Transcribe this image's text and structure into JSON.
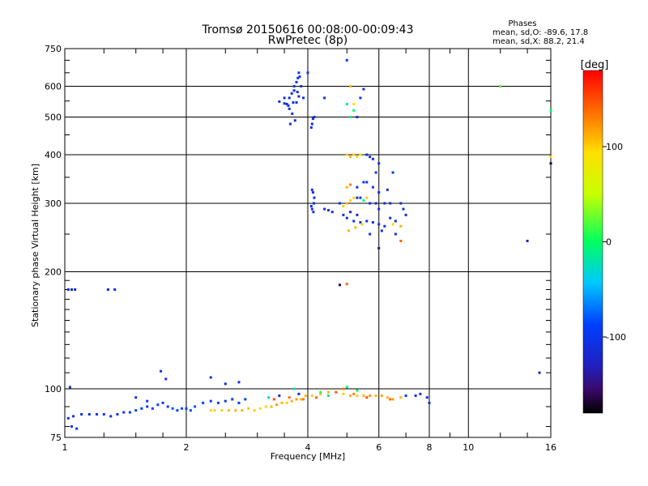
{
  "chart_data": {
    "type": "scatter",
    "title": "Tromsø 20150616 00:08:00-00:09:43",
    "subtitle": "RwPretec (8p)",
    "xlabel": "Frequency [MHz]",
    "ylabel": "Stationary phase Virtual Height [km]",
    "x_scale": "log",
    "y_scale": "log",
    "xlim": [
      1,
      16
    ],
    "ylim": [
      75,
      750
    ],
    "x_ticks": [
      1,
      2,
      4,
      6,
      8,
      10,
      16
    ],
    "x_tick_labels": [
      "1",
      "2",
      "4",
      "6",
      "8",
      "10",
      "16"
    ],
    "y_ticks": [
      75,
      100,
      200,
      300,
      400,
      500,
      600,
      750
    ],
    "y_tick_labels": [
      "75",
      "100",
      "200",
      "300",
      "400",
      "500",
      "600",
      "750"
    ],
    "grid": true,
    "stats": {
      "header": "Phases",
      "line_o": "mean, sd,O: -89.6, 17.8",
      "line_x": "mean, sd,X:  88.2, 21.4"
    },
    "colorbar": {
      "label": "[deg]",
      "min": -180,
      "max": 180,
      "ticks": [
        100,
        0,
        -100
      ],
      "tick_labels": [
        "100",
        "0",
        "-100"
      ]
    },
    "series": [
      {
        "points": [
          [
            1.02,
            180,
            -115
          ],
          [
            1.04,
            180,
            -115
          ],
          [
            1.06,
            180,
            -115
          ],
          [
            1.28,
            180,
            -110
          ],
          [
            1.33,
            180,
            -110
          ],
          [
            1.02,
            84,
            -100
          ],
          [
            1.05,
            85,
            -100
          ],
          [
            1.1,
            86,
            -100
          ],
          [
            1.15,
            86,
            -105
          ],
          [
            1.2,
            86,
            -105
          ],
          [
            1.25,
            86,
            -100
          ],
          [
            1.3,
            85,
            -105
          ],
          [
            1.35,
            86,
            -105
          ],
          [
            1.4,
            87,
            -100
          ],
          [
            1.45,
            87,
            -95
          ],
          [
            1.5,
            88,
            -90
          ],
          [
            1.55,
            89,
            -95
          ],
          [
            1.6,
            90,
            -95
          ],
          [
            1.65,
            89,
            -90
          ],
          [
            1.7,
            91,
            -90
          ],
          [
            1.75,
            92,
            -95
          ],
          [
            1.8,
            90,
            -90
          ],
          [
            1.85,
            89,
            -80
          ],
          [
            1.9,
            88,
            -90
          ],
          [
            1.95,
            89,
            -85
          ],
          [
            2.0,
            89,
            -90
          ],
          [
            2.05,
            88,
            -85
          ],
          [
            2.1,
            90,
            -80
          ],
          [
            2.2,
            92,
            -90
          ],
          [
            2.3,
            93,
            -90
          ],
          [
            2.4,
            92,
            -90
          ],
          [
            2.5,
            93,
            -100
          ],
          [
            2.6,
            94,
            -95
          ],
          [
            2.7,
            92,
            -95
          ],
          [
            2.8,
            94,
            -90
          ],
          [
            1.04,
            80,
            -95
          ],
          [
            1.07,
            79,
            -100
          ],
          [
            1.03,
            101,
            -105
          ],
          [
            1.73,
            111,
            -100
          ],
          [
            1.78,
            106,
            -110
          ],
          [
            2.3,
            107,
            -110
          ],
          [
            2.5,
            103,
            -115
          ],
          [
            2.7,
            104,
            -110
          ],
          [
            1.5,
            95,
            -105
          ],
          [
            1.6,
            93,
            -100
          ],
          [
            2.3,
            88,
            100
          ],
          [
            2.35,
            88,
            100
          ],
          [
            2.45,
            88,
            100
          ],
          [
            2.55,
            88,
            110
          ],
          [
            2.65,
            88,
            110
          ],
          [
            2.75,
            88,
            110
          ],
          [
            2.85,
            89,
            105
          ],
          [
            2.95,
            88,
            100
          ],
          [
            3.05,
            89,
            95
          ],
          [
            3.15,
            90,
            100
          ],
          [
            3.25,
            90,
            110
          ],
          [
            3.35,
            91,
            120
          ],
          [
            3.45,
            92,
            110
          ],
          [
            3.55,
            92,
            100
          ],
          [
            3.65,
            93,
            110
          ],
          [
            3.75,
            94,
            120
          ],
          [
            3.85,
            94,
            110
          ],
          [
            3.95,
            96,
            110
          ],
          [
            4.1,
            96,
            100
          ],
          [
            4.3,
            97,
            110
          ],
          [
            4.5,
            98,
            110
          ],
          [
            4.7,
            98,
            120
          ],
          [
            4.9,
            97,
            100
          ],
          [
            5.1,
            96,
            110
          ],
          [
            5.3,
            96,
            100
          ],
          [
            5.5,
            96,
            110
          ],
          [
            5.7,
            96,
            120
          ],
          [
            5.9,
            96,
            110
          ],
          [
            6.1,
            96,
            115
          ],
          [
            6.3,
            95,
            110
          ],
          [
            6.5,
            94,
            120
          ],
          [
            6.8,
            95,
            110
          ],
          [
            3.3,
            94,
            150
          ],
          [
            3.6,
            95,
            140
          ],
          [
            3.9,
            94,
            130
          ],
          [
            4.2,
            95,
            140
          ],
          [
            4.7,
            98,
            140
          ],
          [
            4.9,
            100,
            130
          ],
          [
            5.2,
            97,
            130
          ],
          [
            5.6,
            95,
            150
          ],
          [
            6.4,
            94,
            140
          ],
          [
            4.5,
            96,
            -10
          ],
          [
            5.0,
            101,
            -20
          ],
          [
            5.3,
            99,
            0
          ],
          [
            4.3,
            98,
            10
          ],
          [
            3.7,
            100,
            -20
          ],
          [
            3.2,
            95,
            -40
          ],
          [
            7.0,
            96,
            -100
          ],
          [
            7.4,
            96,
            -110
          ],
          [
            7.9,
            95,
            -110
          ],
          [
            7.6,
            97,
            -110
          ],
          [
            8.0,
            92,
            -110
          ],
          [
            3.4,
            96,
            -120
          ],
          [
            3.8,
            97,
            -120
          ],
          [
            3.5,
            542,
            -110
          ],
          [
            3.55,
            540,
            -110
          ],
          [
            3.6,
            560,
            -110
          ],
          [
            3.65,
            575,
            -110
          ],
          [
            3.7,
            600,
            -100
          ],
          [
            3.75,
            615,
            -110
          ],
          [
            3.78,
            630,
            -105
          ],
          [
            3.8,
            650,
            -105
          ],
          [
            3.82,
            635,
            -100
          ],
          [
            3.7,
            585,
            -110
          ],
          [
            3.6,
            525,
            -110
          ],
          [
            3.66,
            510,
            -110
          ],
          [
            3.75,
            545,
            -110
          ],
          [
            3.8,
            565,
            -110
          ],
          [
            3.5,
            560,
            -110
          ],
          [
            3.4,
            548,
            -105
          ],
          [
            3.85,
            600,
            -110
          ],
          [
            3.72,
            490,
            -110
          ],
          [
            3.9,
            560,
            -110
          ],
          [
            4.0,
            650,
            -100
          ],
          [
            3.62,
            480,
            -110
          ],
          [
            3.58,
            535,
            -110
          ],
          [
            3.68,
            545,
            -110
          ],
          [
            3.77,
            580,
            -110
          ],
          [
            4.4,
            560,
            -110
          ],
          [
            4.12,
            495,
            -110
          ],
          [
            4.15,
            500,
            -110
          ],
          [
            4.1,
            480,
            -110
          ],
          [
            4.08,
            470,
            -110
          ],
          [
            4.1,
            325,
            -110
          ],
          [
            4.12,
            320,
            -110
          ],
          [
            4.15,
            310,
            -110
          ],
          [
            4.08,
            295,
            -110
          ],
          [
            4.14,
            300,
            -110
          ],
          [
            4.1,
            290,
            -110
          ],
          [
            4.13,
            285,
            -110
          ],
          [
            5.0,
            400,
            100
          ],
          [
            5.1,
            395,
            110
          ],
          [
            5.2,
            400,
            100
          ],
          [
            5.3,
            395,
            95
          ],
          [
            5.4,
            400,
            90
          ],
          [
            5.6,
            400,
            -110
          ],
          [
            5.7,
            395,
            -110
          ],
          [
            5.8,
            390,
            -110
          ],
          [
            5.0,
            700,
            -100
          ],
          [
            5.1,
            600,
            110
          ],
          [
            5.2,
            540,
            90
          ],
          [
            5.3,
            500,
            -110
          ],
          [
            5.5,
            590,
            -110
          ],
          [
            5.4,
            560,
            -100
          ],
          [
            5.0,
            540,
            -20
          ],
          [
            5.2,
            520,
            -10
          ],
          [
            5.1,
            500,
            -10
          ],
          [
            4.8,
            300,
            -100
          ],
          [
            4.9,
            295,
            100
          ],
          [
            5.0,
            300,
            110
          ],
          [
            5.1,
            305,
            100
          ],
          [
            5.2,
            310,
            100
          ],
          [
            5.3,
            310,
            -110
          ],
          [
            5.4,
            310,
            -100
          ],
          [
            5.5,
            305,
            -10
          ],
          [
            5.6,
            310,
            100
          ],
          [
            5.7,
            300,
            -110
          ],
          [
            5.9,
            300,
            -110
          ],
          [
            6.0,
            290,
            -110
          ],
          [
            6.2,
            300,
            -110
          ],
          [
            6.4,
            300,
            -110
          ],
          [
            5.0,
            330,
            110
          ],
          [
            5.1,
            335,
            130
          ],
          [
            5.3,
            330,
            -100
          ],
          [
            5.5,
            340,
            -110
          ],
          [
            5.8,
            330,
            -110
          ],
          [
            6.0,
            320,
            -110
          ],
          [
            6.3,
            325,
            -110
          ],
          [
            4.9,
            280,
            -100
          ],
          [
            5.0,
            275,
            -110
          ],
          [
            5.2,
            270,
            -110
          ],
          [
            5.4,
            268,
            -110
          ],
          [
            5.6,
            270,
            -110
          ],
          [
            5.8,
            268,
            -110
          ],
          [
            6.0,
            265,
            -110
          ],
          [
            6.2,
            262,
            -110
          ],
          [
            6.5,
            265,
            100
          ],
          [
            6.8,
            262,
            110
          ],
          [
            6.6,
            270,
            -110
          ],
          [
            6.4,
            275,
            -110
          ],
          [
            4.6,
            285,
            -110
          ],
          [
            4.5,
            288,
            -100
          ],
          [
            4.4,
            290,
            -110
          ],
          [
            5.3,
            280,
            -120
          ],
          [
            5.1,
            285,
            -120
          ],
          [
            5.6,
            340,
            -100
          ],
          [
            5.9,
            360,
            -100
          ],
          [
            6.0,
            380,
            -110
          ],
          [
            6.5,
            360,
            -100
          ],
          [
            6.8,
            300,
            -110
          ],
          [
            6.9,
            290,
            -110
          ],
          [
            7.0,
            280,
            -110
          ],
          [
            5.05,
            255,
            110
          ],
          [
            5.25,
            260,
            110
          ],
          [
            5.45,
            265,
            100
          ],
          [
            5.7,
            250,
            -110
          ],
          [
            6.1,
            255,
            -110
          ],
          [
            6.6,
            250,
            -110
          ],
          [
            6.0,
            230,
            -140
          ],
          [
            6.8,
            240,
            140
          ],
          [
            4.8,
            185,
            -160
          ],
          [
            5.0,
            186,
            140
          ],
          [
            12.0,
            600,
            20
          ],
          [
            14.0,
            240,
            -130
          ],
          [
            15.0,
            110,
            -120
          ],
          [
            16.0,
            520,
            -10
          ],
          [
            16.0,
            380,
            -170
          ],
          [
            16.0,
            395,
            100
          ]
        ]
      }
    ]
  }
}
